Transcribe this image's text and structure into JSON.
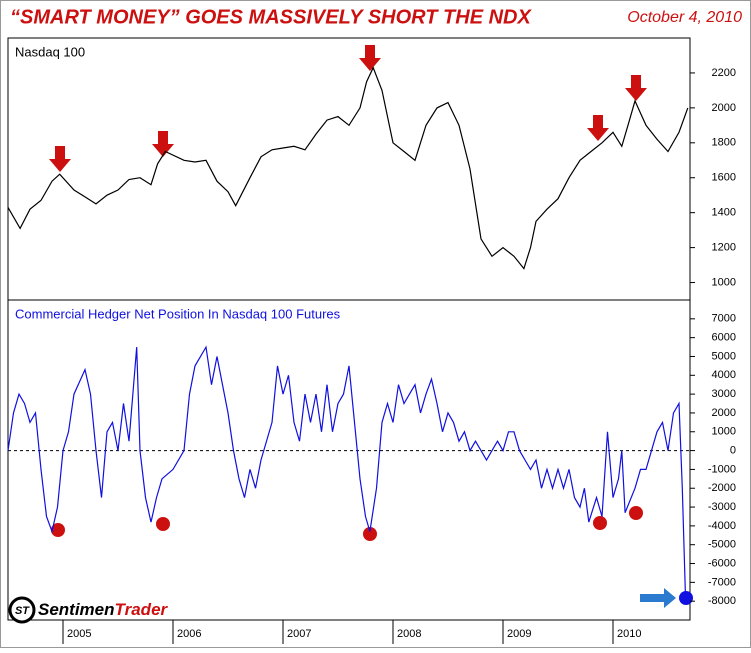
{
  "header": {
    "title": "“SMART MONEY” GOES MASSIVELY SHORT THE NDX",
    "date": "October 4, 2010"
  },
  "logo": {
    "part1": "Sentimen",
    "part2": "Trader"
  },
  "chart_data": [
    {
      "type": "line",
      "title": "Nasdaq 100",
      "color": "#000000",
      "xlim": [
        2004.5,
        2010.7
      ],
      "ylim": [
        900,
        2400
      ],
      "yticks": [
        1000,
        1200,
        1400,
        1600,
        1800,
        2000,
        2200
      ],
      "x": [
        2004.5,
        2004.61,
        2004.7,
        2004.8,
        2004.9,
        2004.97,
        2005.1,
        2005.2,
        2005.3,
        2005.4,
        2005.5,
        2005.6,
        2005.7,
        2005.8,
        2005.86,
        2005.93,
        2006.1,
        2006.2,
        2006.3,
        2006.4,
        2006.5,
        2006.57,
        2006.7,
        2006.8,
        2006.9,
        2007.0,
        2007.1,
        2007.2,
        2007.3,
        2007.4,
        2007.5,
        2007.6,
        2007.7,
        2007.76,
        2007.82,
        2007.9,
        2008.0,
        2008.1,
        2008.2,
        2008.3,
        2008.4,
        2008.5,
        2008.6,
        2008.7,
        2008.8,
        2008.9,
        2009.0,
        2009.1,
        2009.19,
        2009.25,
        2009.3,
        2009.4,
        2009.5,
        2009.6,
        2009.7,
        2009.8,
        2009.9,
        2010.0,
        2010.08,
        2010.15,
        2010.2,
        2010.3,
        2010.4,
        2010.5,
        2010.6,
        2010.68
      ],
      "values": [
        1430,
        1310,
        1420,
        1470,
        1580,
        1620,
        1530,
        1490,
        1450,
        1500,
        1530,
        1590,
        1600,
        1560,
        1680,
        1750,
        1700,
        1690,
        1700,
        1580,
        1520,
        1440,
        1600,
        1720,
        1760,
        1770,
        1780,
        1760,
        1850,
        1930,
        1950,
        1900,
        2000,
        2150,
        2230,
        2100,
        1800,
        1750,
        1700,
        1900,
        2000,
        2030,
        1900,
        1650,
        1250,
        1150,
        1200,
        1150,
        1080,
        1200,
        1350,
        1420,
        1480,
        1600,
        1700,
        1750,
        1800,
        1860,
        1780,
        1930,
        2040,
        1900,
        1820,
        1750,
        1860,
        2000
      ]
    },
    {
      "type": "line",
      "title": "Commercial Hedger Net Position In Nasdaq 100 Futures",
      "color": "#1010e0",
      "xlim": [
        2004.5,
        2010.7
      ],
      "ylim": [
        -9000,
        8000
      ],
      "hline": 0,
      "yticks": [
        -8000,
        -7000,
        -6000,
        -5000,
        -4000,
        -3000,
        -2000,
        -1000,
        0,
        1000,
        2000,
        3000,
        4000,
        5000,
        6000,
        7000
      ],
      "xticks": [
        2005,
        2006,
        2007,
        2008,
        2009,
        2010
      ],
      "x": [
        2004.5,
        2004.55,
        2004.6,
        2004.65,
        2004.7,
        2004.75,
        2004.8,
        2004.85,
        2004.9,
        2004.95,
        2005.0,
        2005.05,
        2005.1,
        2005.2,
        2005.25,
        2005.3,
        2005.35,
        2005.4,
        2005.45,
        2005.5,
        2005.55,
        2005.6,
        2005.67,
        2005.7,
        2005.75,
        2005.8,
        2005.85,
        2005.9,
        2006.0,
        2006.1,
        2006.15,
        2006.2,
        2006.3,
        2006.35,
        2006.4,
        2006.45,
        2006.5,
        2006.55,
        2006.6,
        2006.65,
        2006.7,
        2006.75,
        2006.8,
        2006.9,
        2006.95,
        2007.0,
        2007.05,
        2007.1,
        2007.15,
        2007.2,
        2007.25,
        2007.3,
        2007.35,
        2007.4,
        2007.45,
        2007.5,
        2007.55,
        2007.6,
        2007.65,
        2007.7,
        2007.75,
        2007.79,
        2007.85,
        2007.9,
        2007.95,
        2008.0,
        2008.05,
        2008.1,
        2008.15,
        2008.2,
        2008.25,
        2008.3,
        2008.35,
        2008.4,
        2008.45,
        2008.5,
        2008.55,
        2008.6,
        2008.65,
        2008.7,
        2008.75,
        2008.8,
        2008.85,
        2008.9,
        2008.95,
        2009.0,
        2009.05,
        2009.1,
        2009.15,
        2009.2,
        2009.25,
        2009.3,
        2009.35,
        2009.4,
        2009.45,
        2009.5,
        2009.55,
        2009.6,
        2009.65,
        2009.7,
        2009.74,
        2009.78,
        2009.85,
        2009.9,
        2009.95,
        2010.0,
        2010.05,
        2010.08,
        2010.11,
        2010.2,
        2010.25,
        2010.3,
        2010.35,
        2010.4,
        2010.45,
        2010.5,
        2010.55,
        2010.6,
        2010.63,
        2010.66
      ],
      "values": [
        0,
        2000,
        3000,
        2500,
        1500,
        2000,
        -1000,
        -3500,
        -4300,
        -3000,
        0,
        1000,
        3000,
        4300,
        3000,
        0,
        -2500,
        1000,
        1500,
        0,
        2500,
        500,
        5500,
        0,
        -2500,
        -3800,
        -2500,
        -1500,
        -1000,
        0,
        3000,
        4500,
        5500,
        3500,
        5000,
        3500,
        2000,
        0,
        -1500,
        -2500,
        -1000,
        -2000,
        -500,
        1500,
        4500,
        3000,
        4000,
        1500,
        500,
        3000,
        1500,
        3000,
        1000,
        3500,
        1000,
        2500,
        3000,
        4500,
        1500,
        -1500,
        -3500,
        -4300,
        -2000,
        1500,
        2500,
        1500,
        3500,
        2500,
        3000,
        3500,
        2000,
        3000,
        3800,
        2500,
        1000,
        2000,
        1500,
        500,
        1000,
        0,
        500,
        0,
        -500,
        0,
        500,
        0,
        1000,
        1000,
        0,
        -500,
        -1000,
        -500,
        -2000,
        -1000,
        -2000,
        -1000,
        -2000,
        -1000,
        -2500,
        -3000,
        -2000,
        -3800,
        -2500,
        -3500,
        1000,
        -2500,
        -1500,
        0,
        -3300,
        -2000,
        -1000,
        -1000,
        0,
        1000,
        1500,
        0,
        2000,
        2500,
        -2000,
        -8000
      ]
    }
  ]
}
